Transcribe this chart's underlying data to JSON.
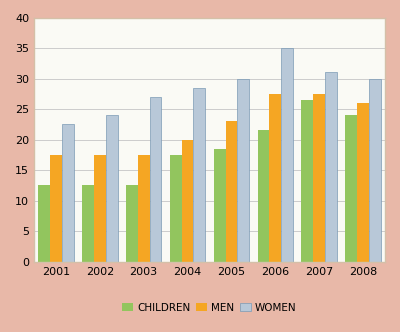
{
  "years": [
    "2001",
    "2002",
    "2003",
    "2004",
    "2005",
    "2006",
    "2007",
    "2008"
  ],
  "children": [
    12.5,
    12.5,
    12.5,
    17.5,
    18.5,
    21.5,
    26.5,
    24.0
  ],
  "men": [
    17.5,
    17.5,
    17.5,
    20.0,
    23.0,
    27.5,
    27.5,
    26.0
  ],
  "women": [
    22.5,
    24.0,
    27.0,
    28.5,
    30.0,
    35.0,
    31.0,
    30.0
  ],
  "colors": {
    "children": "#92C55E",
    "men": "#F5A623",
    "women": "#B8C8D8"
  },
  "women_edge_color": "#7B9AB5",
  "legend_labels": [
    "CHILDREN",
    "MEN",
    "WOMEN"
  ],
  "ylim": [
    0,
    40
  ],
  "yticks": [
    0,
    5,
    10,
    15,
    20,
    25,
    30,
    35,
    40
  ],
  "bar_width": 0.27,
  "plot_bg_color": "#FAFAF5",
  "outer_border_color": "#E8B8A8",
  "inner_border_color": "#D4C0A8",
  "grid_color": "#CCCCCC",
  "tick_fontsize": 8,
  "legend_fontsize": 7.5
}
